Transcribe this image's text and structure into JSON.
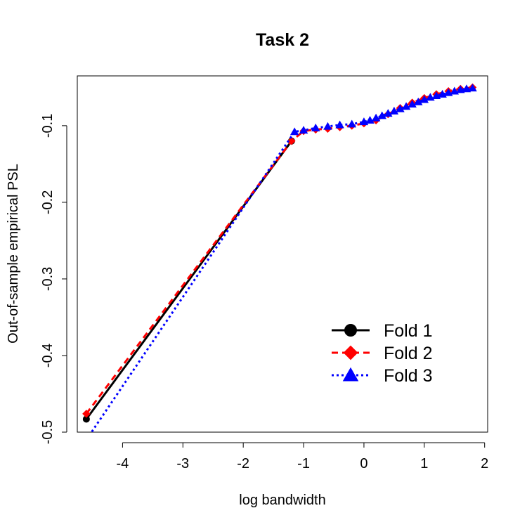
{
  "chart_data": {
    "type": "line",
    "title": "Task 2",
    "xlabel": "log bandwidth",
    "ylabel": "Out-of-sample empirical PSL",
    "xlim": [
      -4.75,
      2.05
    ],
    "ylim": [
      -0.5,
      -0.035
    ],
    "x_ticks": [
      -4,
      -3,
      -2,
      -1,
      0,
      1,
      2
    ],
    "x_tick_labels": [
      "-4",
      "-3",
      "-2",
      "-1",
      "0",
      "1",
      "2"
    ],
    "y_ticks": [
      -0.5,
      -0.4,
      -0.3,
      -0.2,
      -0.1
    ],
    "y_tick_labels": [
      "-0.5",
      "-0.4",
      "-0.3",
      "-0.2",
      "-0.1"
    ],
    "grid": false,
    "legend_position": "bottom-right",
    "series": [
      {
        "name": "Fold 1",
        "color": "#000000",
        "line_style": "solid",
        "marker": "circle",
        "x": [
          -4.6,
          -1.2
        ],
        "y": [
          -0.483,
          -0.12
        ]
      },
      {
        "name": "Fold 2",
        "color": "#ff0000",
        "line_style": "dashed",
        "marker": "diamond",
        "x": [
          -4.6,
          -1.2,
          -1.0,
          -0.8,
          -0.6,
          -0.4,
          -0.2,
          0.0,
          0.2,
          0.4,
          0.6,
          0.8,
          1.0,
          1.2,
          1.4,
          1.6,
          1.8
        ],
        "y": [
          -0.476,
          -0.12,
          -0.107,
          -0.105,
          -0.104,
          -0.102,
          -0.1,
          -0.097,
          -0.093,
          -0.085,
          -0.077,
          -0.07,
          -0.064,
          -0.059,
          -0.055,
          -0.052,
          -0.05
        ]
      },
      {
        "name": "Fold 3",
        "color": "#0000ff",
        "line_style": "dotted",
        "marker": "triangle",
        "x": [
          -4.6,
          -1.15,
          -1.0,
          -0.8,
          -0.6,
          -0.4,
          -0.2,
          0.0,
          0.1,
          0.2,
          0.3,
          0.4,
          0.5,
          0.6,
          0.7,
          0.8,
          0.9,
          1.0,
          1.1,
          1.2,
          1.3,
          1.4,
          1.5,
          1.6,
          1.7,
          1.8
        ],
        "y": [
          -0.51,
          -0.108,
          -0.106,
          -0.103,
          -0.101,
          -0.099,
          -0.098,
          -0.095,
          -0.093,
          -0.09,
          -0.087,
          -0.084,
          -0.081,
          -0.078,
          -0.075,
          -0.072,
          -0.069,
          -0.066,
          -0.063,
          -0.061,
          -0.059,
          -0.057,
          -0.055,
          -0.053,
          -0.052,
          -0.051
        ]
      }
    ]
  }
}
